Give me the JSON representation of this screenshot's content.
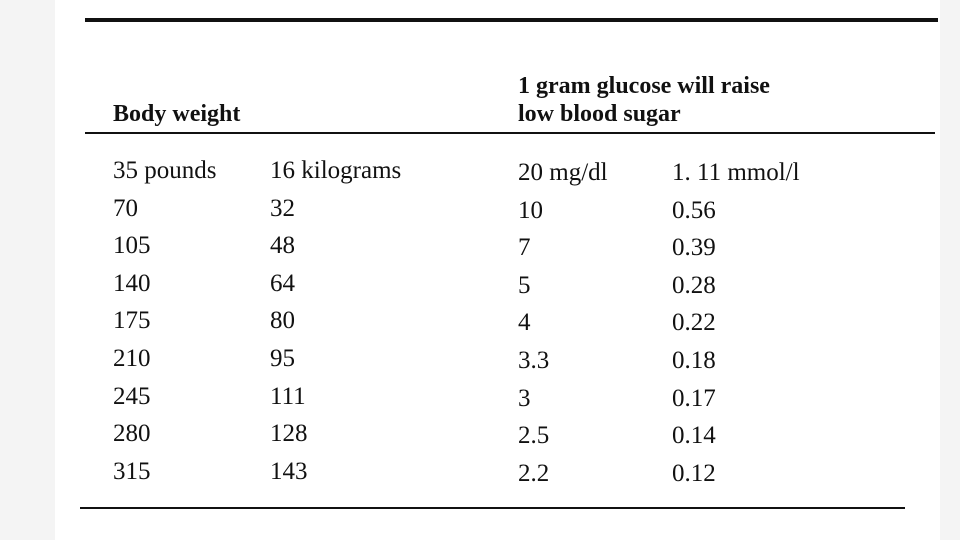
{
  "table": {
    "header": [
      {
        "lines": [
          "Body weight"
        ]
      },
      {
        "lines": [
          "1 gram glucose will raise",
          "low blood sugar"
        ]
      }
    ],
    "rows": [
      [
        "35 pounds",
        "16 kilograms",
        "20 mg/dl",
        "1. 11 mmol/l"
      ],
      [
        "70",
        "32",
        "10",
        "0.56"
      ],
      [
        "105",
        "48",
        "7",
        "0.39"
      ],
      [
        "140",
        "64",
        "5",
        "0.28"
      ],
      [
        "175",
        "80",
        "4",
        "0.22"
      ],
      [
        "210",
        "95",
        "3.3",
        "0.18"
      ],
      [
        "245",
        "111",
        "3",
        "0.17"
      ],
      [
        "280",
        "128",
        "2.5",
        "0.14"
      ],
      [
        "315",
        "143",
        "2.2",
        "0.12"
      ]
    ]
  }
}
